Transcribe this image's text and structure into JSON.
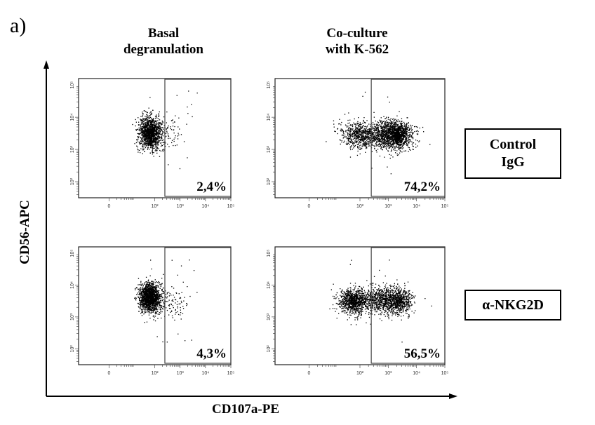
{
  "panel_label": "a)",
  "columns": [
    {
      "line1": "Basal",
      "line2": "degranulation"
    },
    {
      "line1": "Co-culture",
      "line2": "with K-562"
    }
  ],
  "rows": [
    {
      "line1": "Control",
      "line2": "IgG"
    },
    {
      "line1": "α-NKG2D",
      "line2": ""
    }
  ],
  "chart_data": {
    "type": "scatter",
    "title": "",
    "xlabel": "CD107a-PE",
    "ylabel": "CD56-APC",
    "x_scale": "biexponential",
    "y_scale": "log",
    "xlim": [
      -1,
      5
    ],
    "ylim": [
      1.5,
      5.2
    ],
    "x_ticks": [
      "0",
      "10²",
      "10³",
      "10⁴",
      "10⁵"
    ],
    "y_ticks": [
      "10²",
      "10³",
      "10⁴",
      "10⁵"
    ],
    "gate": {
      "x_range": [
        2.4,
        5.0
      ],
      "y_range": [
        1.5,
        5.2
      ]
    },
    "subplots": [
      {
        "row": "Control IgG",
        "column": "Basal degranulation",
        "percent_label": "2,4%",
        "populations": [
          {
            "cx": 1.8,
            "cy": 3.52,
            "sx": 0.22,
            "sy": 0.25,
            "n": 1400
          },
          {
            "cx": 2.6,
            "cy": 3.45,
            "sx": 0.35,
            "sy": 0.3,
            "n": 70
          }
        ]
      },
      {
        "row": "Control IgG",
        "column": "Co-culture with K-562",
        "percent_label": "74,2%",
        "populations": [
          {
            "cx": 2.0,
            "cy": 3.45,
            "sx": 0.35,
            "sy": 0.2,
            "n": 650
          },
          {
            "cx": 3.1,
            "cy": 3.45,
            "sx": 0.4,
            "sy": 0.22,
            "n": 1300
          },
          {
            "cx": 3.35,
            "cy": 3.5,
            "sx": 0.18,
            "sy": 0.16,
            "n": 450
          }
        ]
      },
      {
        "row": "α-NKG2D",
        "column": "Basal degranulation",
        "percent_label": "4,3%",
        "populations": [
          {
            "cx": 1.8,
            "cy": 3.62,
            "sx": 0.2,
            "sy": 0.22,
            "n": 1700
          },
          {
            "cx": 2.7,
            "cy": 3.5,
            "sx": 0.38,
            "sy": 0.28,
            "n": 110
          }
        ]
      },
      {
        "row": "α-NKG2D",
        "column": "Co-culture with K-562",
        "percent_label": "56,5%",
        "populations": [
          {
            "cx": 1.75,
            "cy": 3.5,
            "sx": 0.25,
            "sy": 0.2,
            "n": 900
          },
          {
            "cx": 2.9,
            "cy": 3.55,
            "sx": 0.45,
            "sy": 0.22,
            "n": 1000
          },
          {
            "cx": 3.4,
            "cy": 3.5,
            "sx": 0.2,
            "sy": 0.18,
            "n": 350
          }
        ]
      }
    ]
  }
}
